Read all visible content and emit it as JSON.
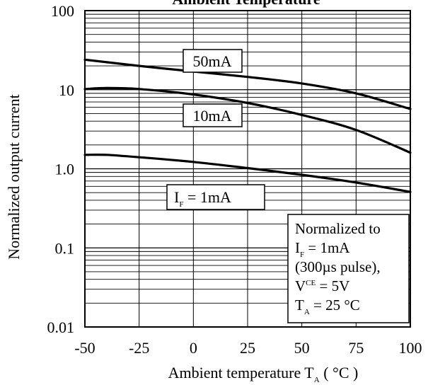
{
  "chart_data": {
    "type": "line",
    "title": "Ambient  Temperature",
    "xlabel": "Ambient temperature T",
    "xlabel_sub": "A",
    "xlabel_unit": " ( °C )",
    "ylabel": "Normalized output current",
    "xlim": [
      -50,
      100
    ],
    "ylim": [
      0.01,
      100
    ],
    "yscale": "log",
    "grid": true,
    "x_ticks": [
      "-50",
      "-25",
      "0",
      "25",
      "50",
      "75",
      "100"
    ],
    "y_ticks": [
      "0.01",
      "0.1",
      "1.0",
      "10",
      "100"
    ],
    "series": [
      {
        "name": "50mA",
        "label_main": "50mA",
        "label_sub": "",
        "label_suffix": "",
        "x": [
          -50,
          -25,
          0,
          25,
          50,
          75,
          100
        ],
        "y": [
          24,
          20,
          17,
          14.5,
          12,
          9,
          5.7
        ]
      },
      {
        "name": "10mA",
        "label_main": "10mA",
        "label_sub": "",
        "label_suffix": "",
        "x": [
          -50,
          -40,
          -25,
          0,
          25,
          50,
          75,
          100
        ],
        "y": [
          10.2,
          10.5,
          10.2,
          8.7,
          6.8,
          4.8,
          3.1,
          1.6
        ]
      },
      {
        "name": "I_F = 1mA",
        "label_main": "I",
        "label_sub": "F",
        "label_suffix": " = 1mA",
        "x": [
          -50,
          -40,
          -25,
          0,
          25,
          50,
          75,
          100
        ],
        "y": [
          1.5,
          1.5,
          1.4,
          1.22,
          1.02,
          0.84,
          0.67,
          0.51
        ]
      }
    ],
    "annotation": {
      "line1": "Normalized to",
      "line2_main": "I",
      "line2_sub": "F",
      "line2_suffix": " = 1mA",
      "line3": "(300µs pulse),",
      "line4_main": "V",
      "line4_sub": "CE",
      "line4_suffix": " = 5V",
      "line5_main": "T",
      "line5_sub": "A",
      "line5_suffix": " = 25 °C"
    }
  }
}
